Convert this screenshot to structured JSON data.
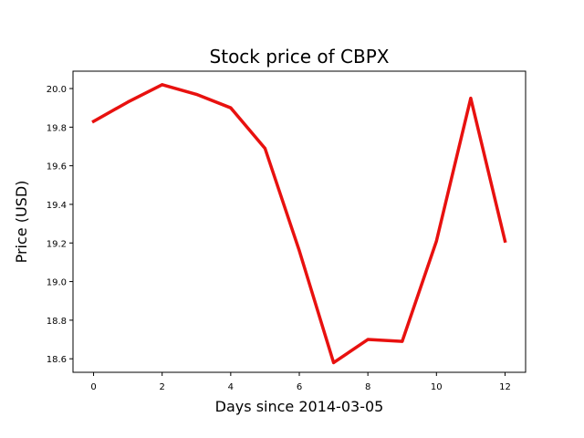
{
  "chart_data": {
    "type": "line",
    "title": "Stock price of CBPX",
    "xlabel": "Days since 2014-03-05",
    "ylabel": "Price (USD)",
    "xlim": [
      -0.6,
      12.6
    ],
    "ylim": [
      18.53,
      20.09
    ],
    "x_ticks": [
      0,
      2,
      4,
      6,
      8,
      10,
      12
    ],
    "y_ticks": [
      18.6,
      18.8,
      19.0,
      19.2,
      19.4,
      19.6,
      19.8,
      20.0
    ],
    "y_tick_labels": [
      "18.6",
      "18.8",
      "19.0",
      "19.2",
      "19.4",
      "19.6",
      "19.8",
      "20.0"
    ],
    "grid": false,
    "series": [
      {
        "color": "#e8110f",
        "x": [
          0,
          1,
          2,
          3,
          4,
          5,
          6,
          7,
          8,
          9,
          10,
          11,
          12
        ],
        "y": [
          19.83,
          19.93,
          20.02,
          19.97,
          19.9,
          19.69,
          19.16,
          18.58,
          18.7,
          18.69,
          19.21,
          19.95,
          19.21
        ]
      }
    ]
  }
}
